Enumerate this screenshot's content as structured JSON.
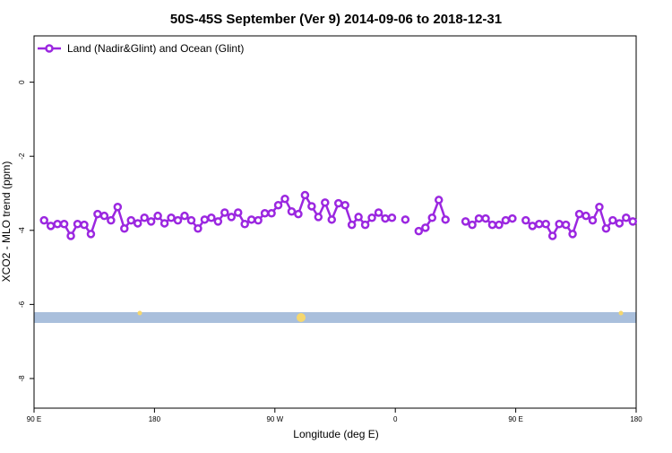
{
  "chart_data": {
    "type": "line",
    "title": "50S-45S September (Ver 9)   2014-09-06 to 2018-12-31",
    "x_label": "Longitude (deg E)",
    "y_label": "XCO2 - MLO trend (ppm)",
    "x": [
      97.5,
      102.5,
      107.5,
      112.5,
      117.5,
      122.5,
      127.5,
      132.5,
      137.5,
      142.5,
      147.5,
      152.5,
      157.5,
      162.5,
      167.5,
      172.5,
      177.5,
      182.5,
      187.5,
      192.5,
      197.5,
      202.5,
      207.5,
      212.5,
      217.5,
      222.5,
      227.5,
      232.5,
      237.5,
      242.5,
      247.5,
      252.5,
      257.5,
      262.5,
      267.5,
      272.5,
      277.5,
      282.5,
      287.5,
      292.5,
      297.5,
      302.5,
      307.5,
      312.5,
      317.5,
      322.5,
      327.5,
      332.5,
      337.5,
      342.5,
      347.5,
      352.5,
      357.5,
      362.5,
      367.5,
      372.5,
      377.5,
      382.5,
      387.5,
      392.5,
      397.5,
      402.5,
      407.5,
      412.5,
      417.5,
      422.5,
      427.5,
      432.5,
      437.5,
      442.5,
      447.5,
      452.5,
      457.5,
      462.5,
      467.5,
      472.5,
      477.5,
      482.5,
      487.5,
      492.5,
      497.5,
      502.5,
      507.5,
      512.5,
      517.5,
      522.5,
      527.5,
      532.5,
      537.5
    ],
    "series": [
      {
        "name": "Land (Nadir&Glint) and Ocean (Glint)",
        "color": "#9b27e0",
        "values": [
          -3.73,
          -3.88,
          -3.83,
          -3.83,
          -4.15,
          -3.83,
          -3.85,
          -4.1,
          -3.56,
          -3.61,
          -3.73,
          -3.37,
          -3.95,
          -3.73,
          -3.81,
          -3.66,
          -3.76,
          -3.61,
          -3.81,
          -3.66,
          -3.73,
          -3.61,
          -3.73,
          -3.95,
          -3.71,
          -3.66,
          -3.76,
          -3.52,
          -3.64,
          -3.52,
          -3.83,
          -3.71,
          -3.73,
          -3.54,
          -3.54,
          -3.32,
          -3.15,
          -3.49,
          -3.56,
          -3.05,
          -3.35,
          -3.64,
          -3.25,
          -3.71,
          -3.27,
          -3.32,
          -3.85,
          -3.64,
          -3.85,
          -3.66,
          -3.52,
          -3.68,
          -3.66,
          null,
          -3.71,
          null,
          -4.02,
          -3.93,
          -3.66,
          -3.18,
          -3.71,
          null,
          null,
          -3.76,
          -3.85,
          -3.68,
          -3.68,
          -3.85,
          -3.85,
          -3.73,
          -3.68,
          null,
          -3.73,
          -3.88,
          -3.83,
          -3.83,
          -4.15,
          -3.83,
          -3.85,
          -4.1,
          -3.56,
          -3.61,
          -3.73,
          -3.37,
          -3.95,
          -3.73,
          -3.81,
          -3.66,
          -3.76
        ]
      }
    ],
    "xlim": [
      90,
      540
    ],
    "xticks": [
      {
        "value": 90,
        "label": "90 E"
      },
      {
        "value": 180,
        "label": "180"
      },
      {
        "value": 270,
        "label": "90 W"
      },
      {
        "value": 360,
        "label": "0"
      },
      {
        "value": 450,
        "label": "90 E"
      },
      {
        "value": 540,
        "label": "180"
      }
    ],
    "ylim": [
      -8.8,
      1.25
    ],
    "yticks": [
      0,
      -2,
      -4,
      -6,
      -8
    ],
    "legend": "top-left"
  }
}
